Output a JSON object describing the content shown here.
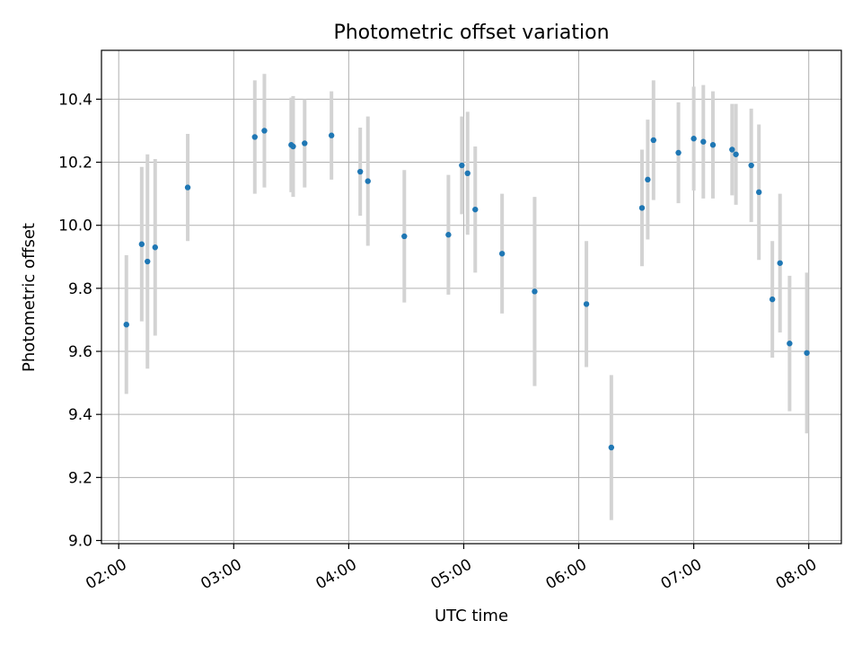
{
  "chart_data": {
    "type": "scatter",
    "title": "Photometric offset variation",
    "xlabel": "UTC time",
    "ylabel": "Photometric offset",
    "x_tick_labels": [
      "02:00",
      "03:00",
      "04:00",
      "05:00",
      "06:00",
      "07:00",
      "08:00"
    ],
    "x_ticks": [
      "02:00",
      "03:00",
      "04:00",
      "05:00",
      "06:00",
      "07:00",
      "08:00"
    ],
    "y_ticks": [
      9.0,
      9.2,
      9.4,
      9.6,
      9.8,
      10.0,
      10.2,
      10.4
    ],
    "y_tick_labels": [
      "9.0",
      "9.2",
      "9.4",
      "9.6",
      "9.8",
      "10.0",
      "10.2",
      "10.4"
    ],
    "xlim": [
      "01:51",
      "08:17"
    ],
    "ylim": [
      8.99,
      10.555
    ],
    "grid": true,
    "colors": {
      "point": "#1f77b4",
      "errorbar": "#d3d3d3",
      "grid": "#b0b0b0"
    },
    "points": [
      {
        "x": "02:04",
        "y": 9.685,
        "err": 0.22
      },
      {
        "x": "02:12",
        "y": 9.94,
        "err": 0.245
      },
      {
        "x": "02:15",
        "y": 9.885,
        "err": 0.34
      },
      {
        "x": "02:19",
        "y": 9.93,
        "err": 0.28
      },
      {
        "x": "02:36",
        "y": 10.12,
        "err": 0.17
      },
      {
        "x": "03:11",
        "y": 10.28,
        "err": 0.18
      },
      {
        "x": "03:16",
        "y": 10.3,
        "err": 0.18
      },
      {
        "x": "03:30",
        "y": 10.255,
        "err": 0.15
      },
      {
        "x": "03:31",
        "y": 10.25,
        "err": 0.16
      },
      {
        "x": "03:37",
        "y": 10.26,
        "err": 0.14
      },
      {
        "x": "03:51",
        "y": 10.285,
        "err": 0.14
      },
      {
        "x": "04:06",
        "y": 10.17,
        "err": 0.14
      },
      {
        "x": "04:10",
        "y": 10.14,
        "err": 0.205
      },
      {
        "x": "04:29",
        "y": 9.965,
        "err": 0.21
      },
      {
        "x": "04:52",
        "y": 9.97,
        "err": 0.19
      },
      {
        "x": "04:59",
        "y": 10.19,
        "err": 0.155
      },
      {
        "x": "05:02",
        "y": 10.165,
        "err": 0.195
      },
      {
        "x": "05:06",
        "y": 10.05,
        "err": 0.2
      },
      {
        "x": "05:20",
        "y": 9.91,
        "err": 0.19
      },
      {
        "x": "05:37",
        "y": 9.79,
        "err": 0.3
      },
      {
        "x": "06:04",
        "y": 9.75,
        "err": 0.2
      },
      {
        "x": "06:17",
        "y": 9.295,
        "err": 0.23
      },
      {
        "x": "06:33",
        "y": 10.055,
        "err": 0.185
      },
      {
        "x": "06:36",
        "y": 10.145,
        "err": 0.19
      },
      {
        "x": "06:39",
        "y": 10.27,
        "err": 0.19
      },
      {
        "x": "06:52",
        "y": 10.23,
        "err": 0.16
      },
      {
        "x": "07:00",
        "y": 10.275,
        "err": 0.165
      },
      {
        "x": "07:05",
        "y": 10.265,
        "err": 0.18
      },
      {
        "x": "07:10",
        "y": 10.255,
        "err": 0.17
      },
      {
        "x": "07:20",
        "y": 10.24,
        "err": 0.145
      },
      {
        "x": "07:22",
        "y": 10.225,
        "err": 0.16
      },
      {
        "x": "07:30",
        "y": 10.19,
        "err": 0.18
      },
      {
        "x": "07:34",
        "y": 10.105,
        "err": 0.215
      },
      {
        "x": "07:41",
        "y": 9.765,
        "err": 0.185
      },
      {
        "x": "07:45",
        "y": 9.88,
        "err": 0.22
      },
      {
        "x": "07:50",
        "y": 9.625,
        "err": 0.215
      },
      {
        "x": "07:59",
        "y": 9.595,
        "err": 0.255
      }
    ]
  }
}
